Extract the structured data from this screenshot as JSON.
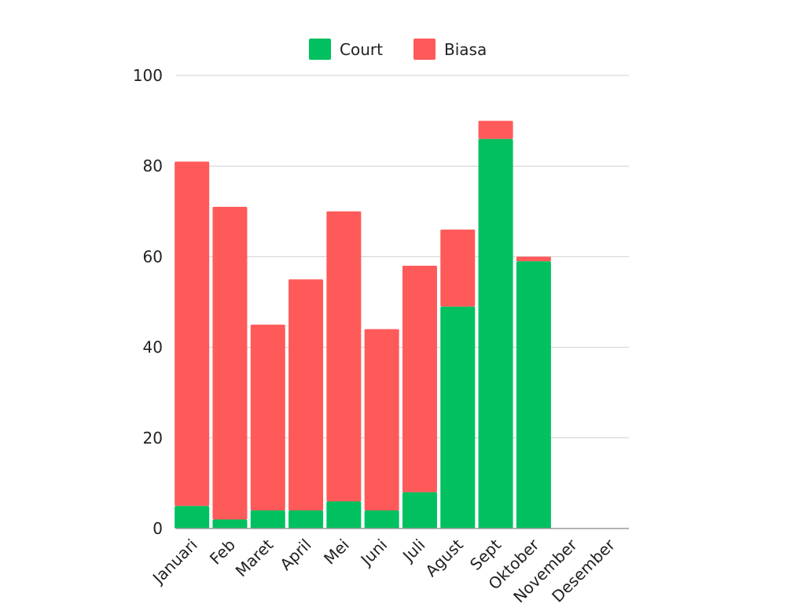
{
  "chart_data": {
    "type": "bar",
    "stacked": true,
    "categories": [
      "Januari",
      "Feb",
      "Maret",
      "April",
      "Mei",
      "Juni",
      "Juli",
      "Agust",
      "Sept",
      "Oktober",
      "November",
      "Desember"
    ],
    "series": [
      {
        "name": "Court",
        "color": "#00c060",
        "values": [
          5,
          2,
          4,
          4,
          6,
          4,
          8,
          49,
          86,
          59,
          0,
          0
        ]
      },
      {
        "name": "Biasa",
        "color": "#ff5a5a",
        "values": [
          76,
          69,
          41,
          51,
          64,
          40,
          50,
          17,
          4,
          1,
          0,
          0
        ]
      }
    ],
    "ylim": [
      0,
      100
    ],
    "yticks": [
      0,
      20,
      40,
      60,
      80,
      100
    ],
    "grid": true,
    "legend_position": "top-center",
    "title": "",
    "xlabel": "",
    "ylabel": ""
  }
}
